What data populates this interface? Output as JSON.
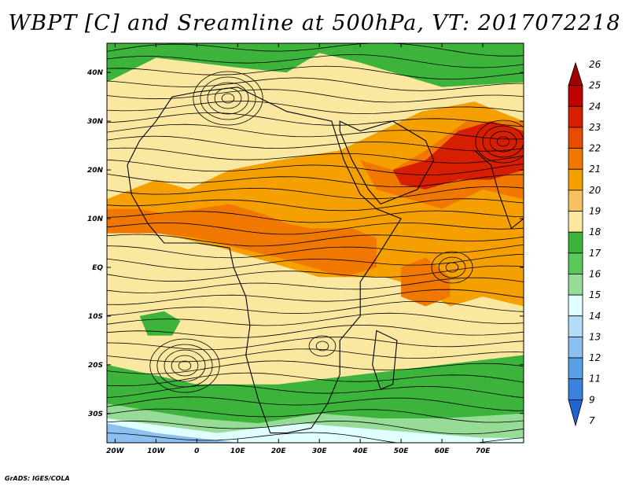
{
  "title": "WBPT [C] and Sreamline at 500hPa, VT: 2017072218",
  "credit": "GrADS: IGES/COLA",
  "map": {
    "lon_range": [
      -22,
      80
    ],
    "lat_range": [
      -36,
      46
    ],
    "lat_ticks": [
      {
        "value": 40,
        "label": "40N"
      },
      {
        "value": 30,
        "label": "30N"
      },
      {
        "value": 20,
        "label": "20N"
      },
      {
        "value": 10,
        "label": "10N"
      },
      {
        "value": 0,
        "label": "EQ"
      },
      {
        "value": -10,
        "label": "10S"
      },
      {
        "value": -20,
        "label": "20S"
      },
      {
        "value": -30,
        "label": "30S"
      }
    ],
    "lon_ticks": [
      {
        "value": -20,
        "label": "20W"
      },
      {
        "value": -10,
        "label": "10W"
      },
      {
        "value": 0,
        "label": "0"
      },
      {
        "value": 10,
        "label": "10E"
      },
      {
        "value": 20,
        "label": "20E"
      },
      {
        "value": 30,
        "label": "30E"
      },
      {
        "value": 40,
        "label": "40E"
      },
      {
        "value": 50,
        "label": "50E"
      },
      {
        "value": 60,
        "label": "60E"
      },
      {
        "value": 70,
        "label": "70E"
      }
    ]
  },
  "colorbar": {
    "levels": [
      "26",
      "25",
      "24",
      "23",
      "22",
      "21",
      "20",
      "19",
      "18",
      "17",
      "16",
      "15",
      "14",
      "13",
      "12",
      "11",
      "9",
      "7"
    ],
    "colors": [
      "#a50000",
      "#c00000",
      "#d81e00",
      "#e84a00",
      "#f07800",
      "#f5a000",
      "#f7c060",
      "#fbe8a0",
      "#3cb43c",
      "#5ac85a",
      "#96dc96",
      "#e0ffff",
      "#b4dcf8",
      "#8cc0f0",
      "#5aa0e6",
      "#3c82dc",
      "#2064d2"
    ]
  },
  "contours": [
    {
      "name": "green-north",
      "color": "#3cb43c",
      "points": [
        [
          -22,
          46
        ],
        [
          80,
          46
        ],
        [
          80,
          38
        ],
        [
          60,
          37
        ],
        [
          48,
          40
        ],
        [
          40,
          42
        ],
        [
          30,
          44
        ],
        [
          22,
          40
        ],
        [
          10,
          41
        ],
        [
          0,
          42
        ],
        [
          -10,
          43
        ],
        [
          -22,
          38
        ]
      ]
    },
    {
      "name": "yellow-main",
      "color": "#fbe8a0",
      "points": [
        [
          -22,
          38
        ],
        [
          -10,
          43
        ],
        [
          0,
          42
        ],
        [
          10,
          41
        ],
        [
          22,
          40
        ],
        [
          30,
          44
        ],
        [
          40,
          42
        ],
        [
          48,
          40
        ],
        [
          60,
          37
        ],
        [
          80,
          38
        ],
        [
          80,
          -18
        ],
        [
          60,
          -20
        ],
        [
          40,
          -22
        ],
        [
          20,
          -24
        ],
        [
          0,
          -24
        ],
        [
          -22,
          -20
        ]
      ]
    },
    {
      "name": "orange-belt",
      "color": "#f5a000",
      "points": [
        [
          -22,
          14
        ],
        [
          -10,
          18
        ],
        [
          -2,
          16
        ],
        [
          8,
          20
        ],
        [
          20,
          22
        ],
        [
          35,
          24
        ],
        [
          45,
          28
        ],
        [
          55,
          32
        ],
        [
          68,
          34
        ],
        [
          80,
          30
        ],
        [
          80,
          -8
        ],
        [
          70,
          -6
        ],
        [
          62,
          -8
        ],
        [
          54,
          -4
        ],
        [
          46,
          -2
        ],
        [
          38,
          -2
        ],
        [
          30,
          -2
        ],
        [
          22,
          0
        ],
        [
          14,
          2
        ],
        [
          6,
          4
        ],
        [
          -4,
          6
        ],
        [
          -14,
          8
        ],
        [
          -22,
          8
        ]
      ]
    },
    {
      "name": "orange-deep-w",
      "color": "#f07800",
      "points": [
        [
          -22,
          12
        ],
        [
          -14,
          12
        ],
        [
          -8,
          11
        ],
        [
          0,
          12
        ],
        [
          8,
          13
        ],
        [
          16,
          11
        ],
        [
          22,
          9
        ],
        [
          28,
          8
        ],
        [
          38,
          8
        ],
        [
          44,
          6
        ],
        [
          44,
          0
        ],
        [
          36,
          -2
        ],
        [
          28,
          0
        ],
        [
          20,
          2
        ],
        [
          10,
          4
        ],
        [
          0,
          6
        ],
        [
          -10,
          7
        ],
        [
          -22,
          7
        ]
      ]
    },
    {
      "name": "orange-deep-e",
      "color": "#f07800",
      "points": [
        [
          40,
          22
        ],
        [
          48,
          20
        ],
        [
          56,
          24
        ],
        [
          66,
          30
        ],
        [
          80,
          30
        ],
        [
          80,
          14
        ],
        [
          70,
          16
        ],
        [
          60,
          12
        ],
        [
          52,
          14
        ],
        [
          44,
          16
        ]
      ]
    },
    {
      "name": "red-arabia",
      "color": "#d81e00",
      "points": [
        [
          48,
          20
        ],
        [
          56,
          22
        ],
        [
          64,
          28
        ],
        [
          72,
          30
        ],
        [
          80,
          28
        ],
        [
          80,
          20
        ],
        [
          72,
          18
        ],
        [
          64,
          18
        ],
        [
          56,
          16
        ],
        [
          50,
          17
        ]
      ]
    },
    {
      "name": "orange-indian",
      "color": "#f07800",
      "points": [
        [
          50,
          0
        ],
        [
          56,
          2
        ],
        [
          62,
          -2
        ],
        [
          62,
          -6
        ],
        [
          56,
          -8
        ],
        [
          50,
          -6
        ]
      ]
    },
    {
      "name": "green-south",
      "color": "#3cb43c",
      "points": [
        [
          -22,
          -20
        ],
        [
          0,
          -24
        ],
        [
          20,
          -24
        ],
        [
          40,
          -22
        ],
        [
          60,
          -20
        ],
        [
          80,
          -18
        ],
        [
          80,
          -36
        ],
        [
          -22,
          -36
        ]
      ]
    },
    {
      "name": "lightgreen-south",
      "color": "#96dc96",
      "points": [
        [
          -22,
          -28
        ],
        [
          0,
          -31
        ],
        [
          15,
          -32
        ],
        [
          30,
          -30
        ],
        [
          45,
          -31
        ],
        [
          60,
          -31
        ],
        [
          80,
          -30
        ],
        [
          80,
          -36
        ],
        [
          -22,
          -36
        ]
      ]
    },
    {
      "name": "cyan-south",
      "color": "#e0ffff",
      "points": [
        [
          -22,
          -31
        ],
        [
          5,
          -34
        ],
        [
          15,
          -33
        ],
        [
          25,
          -32
        ],
        [
          40,
          -33
        ],
        [
          55,
          -34
        ],
        [
          70,
          -35
        ],
        [
          80,
          -35
        ],
        [
          80,
          -36
        ],
        [
          -22,
          -36
        ]
      ]
    },
    {
      "name": "blue-south",
      "color": "#8cc0f0",
      "points": [
        [
          -22,
          -32
        ],
        [
          -10,
          -34
        ],
        [
          0,
          -35
        ],
        [
          10,
          -36
        ],
        [
          -22,
          -36
        ]
      ]
    },
    {
      "name": "green-west-blob",
      "color": "#3cb43c",
      "points": [
        [
          -14,
          -10
        ],
        [
          -8,
          -9
        ],
        [
          -4,
          -11
        ],
        [
          -6,
          -14
        ],
        [
          -12,
          -14
        ]
      ]
    }
  ]
}
